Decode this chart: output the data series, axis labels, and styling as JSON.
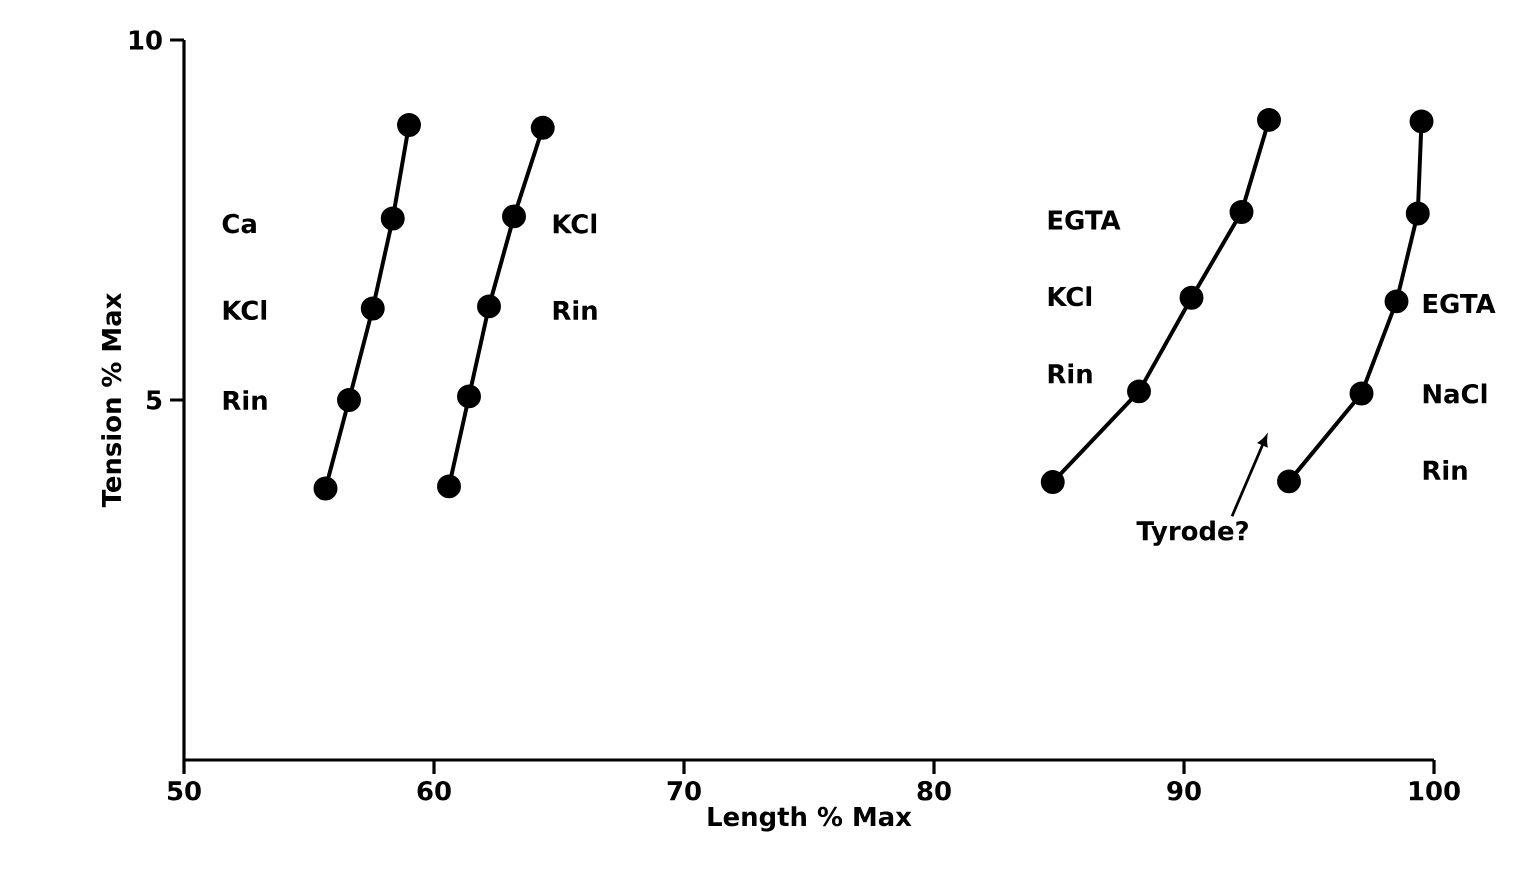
{
  "chart_data": {
    "type": "line",
    "xlabel": "Length % Max",
    "ylabel": "Tension   %   Max",
    "xlim": [
      50,
      100
    ],
    "ylim": [
      0,
      10
    ],
    "xticks": [
      50,
      60,
      70,
      80,
      90,
      100
    ],
    "yticks": [
      5,
      10
    ],
    "marker": "circle",
    "line_style": "solid",
    "grid": false,
    "series": [
      {
        "color": "#000000",
        "x": [
          55.66,
          56.6,
          57.55,
          58.35,
          59.0
        ],
        "values": [
          3.77,
          5.0,
          6.27,
          7.52,
          8.82
        ]
      },
      {
        "color": "#000000",
        "x": [
          60.6,
          61.4,
          62.2,
          63.2,
          64.35
        ],
        "values": [
          3.8,
          5.05,
          6.3,
          7.55,
          8.78
        ]
      },
      {
        "color": "#000000",
        "x": [
          84.75,
          88.2,
          90.3,
          92.3,
          93.4
        ],
        "values": [
          3.86,
          5.12,
          6.42,
          7.61,
          8.89
        ]
      },
      {
        "color": "#000000",
        "x": [
          94.2,
          97.1,
          98.5,
          99.35,
          99.5
        ],
        "values": [
          3.87,
          5.09,
          6.37,
          7.59,
          8.87
        ]
      }
    ],
    "annotations": [
      "Ca",
      "KCl",
      "Rin",
      "KCl",
      "Rin",
      "EGTA",
      "KCl",
      "Rin",
      "EGTA",
      "NaCl",
      "Rin",
      "Tyrode?"
    ]
  }
}
